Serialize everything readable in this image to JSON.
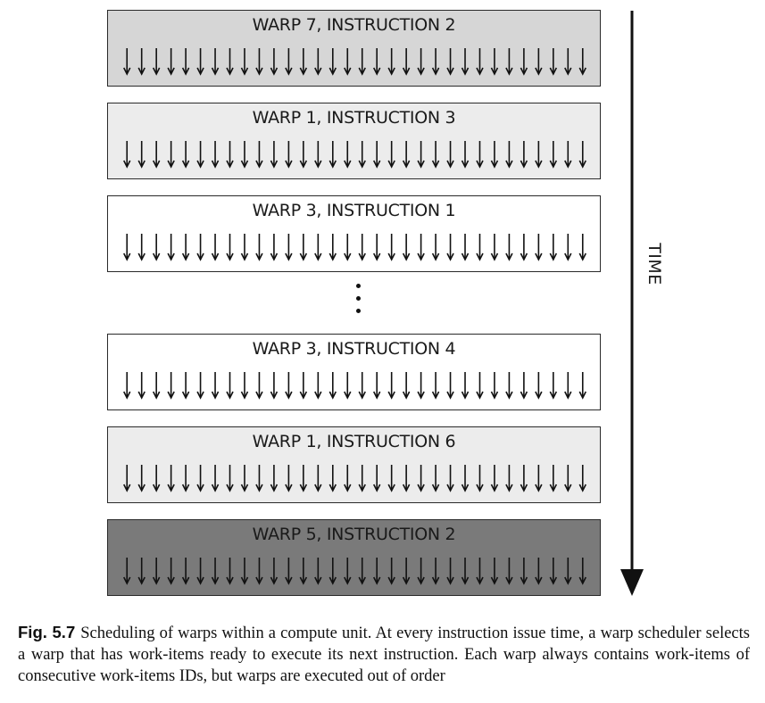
{
  "warps": [
    {
      "label": "WARP 7, INSTRUCTION 2",
      "fill": "#d6d6d6"
    },
    {
      "label": "WARP 1, INSTRUCTION 3",
      "fill": "#ececec"
    },
    {
      "label": "WARP 3, INSTRUCTION 1",
      "fill": "#ffffff"
    },
    {
      "label": "WARP 3, INSTRUCTION 4",
      "fill": "#ffffff"
    },
    {
      "label": "WARP 1, INSTRUCTION 6",
      "fill": "#ececec"
    },
    {
      "label": "WARP 5, INSTRUCTION 2",
      "fill": "#7a7a7a"
    }
  ],
  "arrow_count": 32,
  "time_axis": {
    "label": "TIME"
  },
  "caption": {
    "fig_number": "Fig. 5.7",
    "text": "Scheduling of warps within a compute unit. At every instruction issue time, a warp scheduler selects a warp that has work-items ready to execute its next instruction. Each warp always contains work-items of consecutive work-items IDs, but warps are executed out of order"
  }
}
